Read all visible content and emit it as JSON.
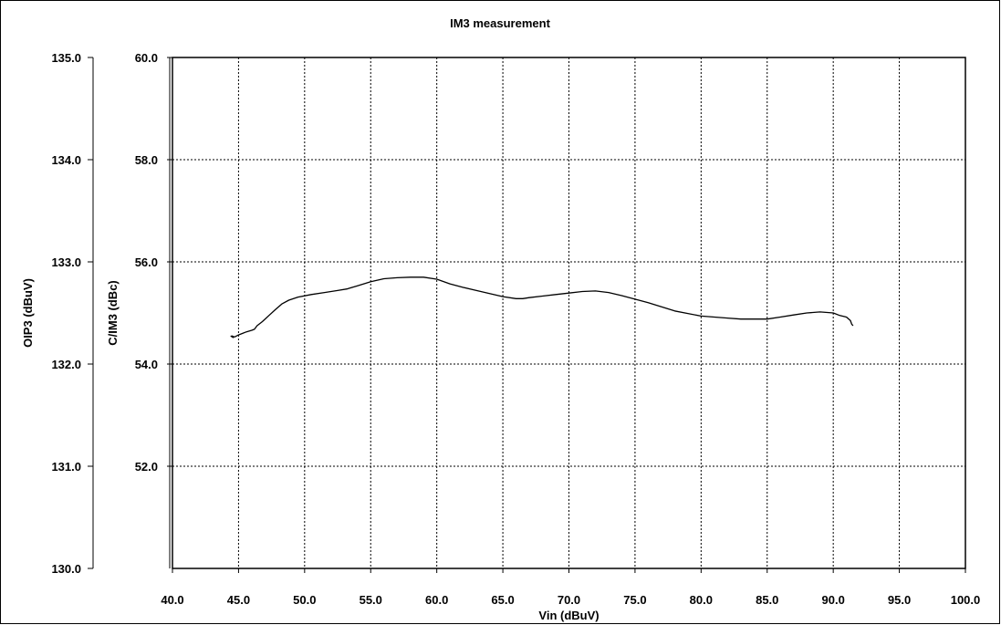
{
  "chart_data": {
    "type": "line",
    "title": "IM3 measurement",
    "xlabel": "Vin (dBuV)",
    "ylabel": "C/IM3 (dBc)",
    "y2label": "OIP3 (dBuV)",
    "xlim": [
      40,
      100
    ],
    "ylim": [
      50,
      60
    ],
    "y2lim": [
      130,
      135
    ],
    "x_ticks": [
      "40.0",
      "45.0",
      "50.0",
      "55.0",
      "60.0",
      "65.0",
      "70.0",
      "75.0",
      "80.0",
      "85.0",
      "90.0",
      "95.0",
      "100.0"
    ],
    "y_ticks": [
      "52.0",
      "54.0",
      "56.0",
      "58.0",
      "60.0"
    ],
    "y2_ticks": [
      "130.0",
      "131.0",
      "132.0",
      "133.0",
      "134.0",
      "135.0"
    ],
    "grid": true,
    "series": [
      {
        "color": "#000000",
        "x": [
          44.4,
          44.6,
          44.5,
          44.7,
          45.0,
          45.3,
          45.6,
          46.0,
          46.2,
          46.4,
          46.8,
          47.3,
          47.8,
          48.3,
          48.8,
          49.5,
          50.5,
          51.5,
          52.5,
          53.2,
          54.0,
          55.0,
          56.0,
          57.0,
          58.0,
          59.0,
          60.0,
          61.0,
          62.0,
          63.0,
          64.0,
          65.0,
          66.0,
          66.5,
          67.0,
          68.0,
          69.0,
          70.0,
          71.0,
          72.0,
          73.0,
          74.0,
          75.0,
          76.0,
          77.0,
          78.0,
          79.0,
          80.0,
          81.0,
          82.0,
          83.0,
          84.0,
          85.0,
          86.0,
          87.0,
          88.0,
          89.0,
          90.0,
          90.5,
          91.0,
          91.3,
          91.4,
          91.5
        ],
        "y": [
          54.55,
          54.52,
          54.55,
          54.53,
          54.57,
          54.6,
          54.63,
          54.66,
          54.68,
          54.75,
          54.83,
          54.95,
          55.07,
          55.18,
          55.25,
          55.31,
          55.36,
          55.4,
          55.44,
          55.47,
          55.53,
          55.61,
          55.67,
          55.69,
          55.7,
          55.7,
          55.66,
          55.57,
          55.5,
          55.44,
          55.38,
          55.32,
          55.28,
          55.28,
          55.3,
          55.33,
          55.36,
          55.39,
          55.42,
          55.43,
          55.4,
          55.34,
          55.27,
          55.2,
          55.12,
          55.04,
          54.99,
          54.94,
          54.92,
          54.9,
          54.88,
          54.88,
          54.88,
          54.92,
          54.96,
          55.0,
          55.02,
          55.0,
          54.95,
          54.92,
          54.85,
          54.78,
          54.75
        ]
      }
    ]
  }
}
